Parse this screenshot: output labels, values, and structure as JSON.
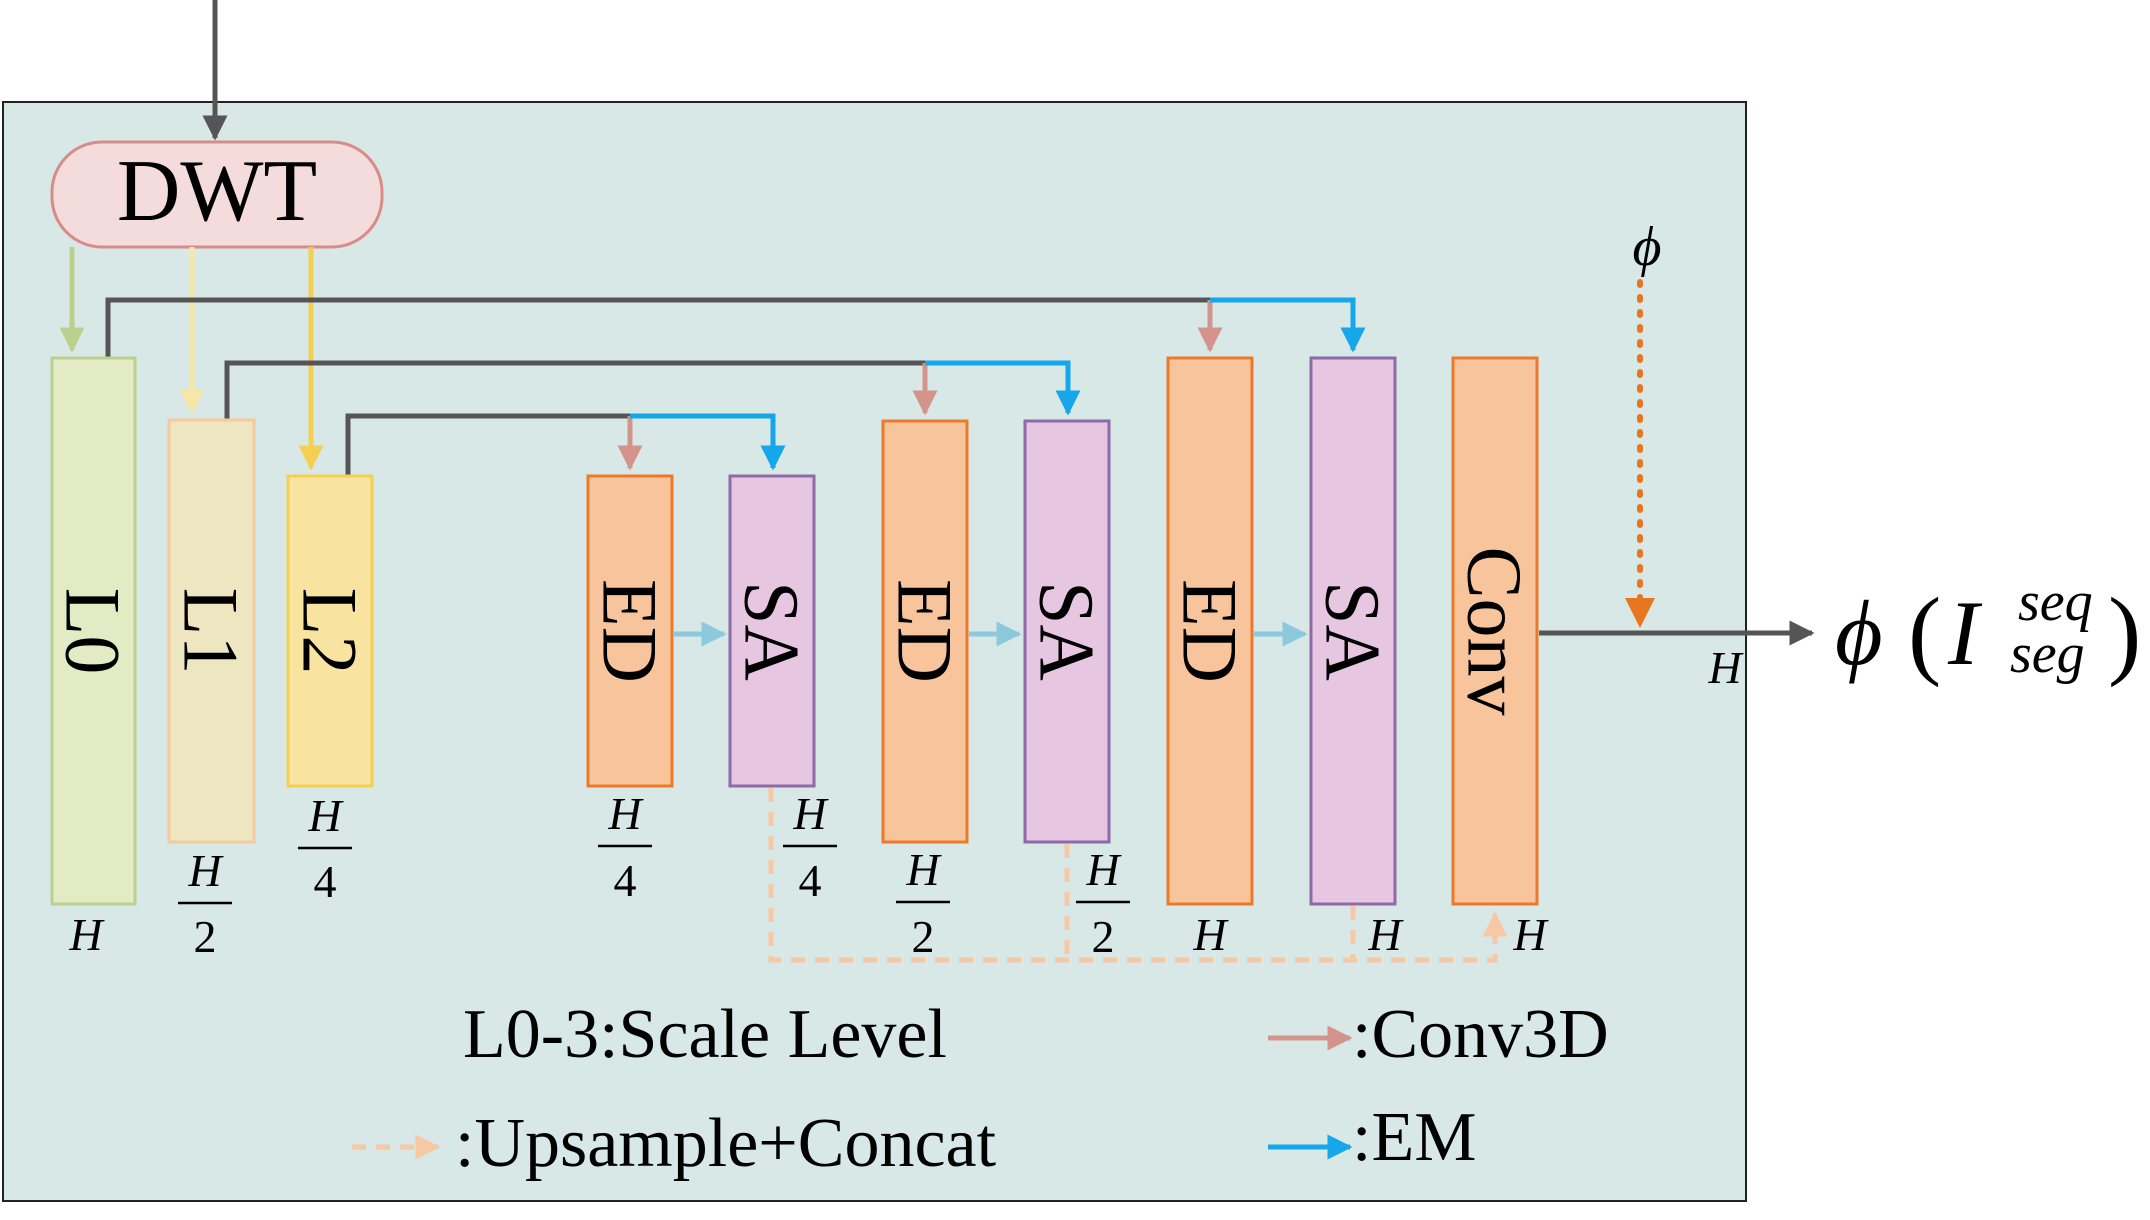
{
  "colors": {
    "panel_fill": "#d7e8e6",
    "dwt_fill": "#f3dcdb",
    "dwt_stroke": "#d98b88",
    "l0_fill": "#e3ebc5",
    "l0_stroke": "#b8d28e",
    "l1_fill": "#eee6c1",
    "l1_stroke": "#f5c9a0",
    "l2_fill": "#f8e4a0",
    "l2_stroke": "#f5cf51",
    "ed_fill": "#f8c49b",
    "ed_stroke": "#ec7a2a",
    "sa_fill": "#e6c6e1",
    "sa_stroke": "#8e6aa6",
    "skip_line": "#555555",
    "conv3d_arrow": "#d4948c",
    "em_arrow": "#16a6ea",
    "ed_to_sa_arrow": "#8cc9dc",
    "upsample_dashed": "#f7c8a4",
    "phi_dotted": "#e8761e",
    "output_line": "#555555"
  },
  "blocks": {
    "dwt": "DWT",
    "l0": "L0",
    "l1": "L1",
    "l2": "L2",
    "ed": "ED",
    "sa": "SA",
    "conv": "Conv"
  },
  "scales": {
    "h_symbol": "H",
    "half_denominator": "2",
    "quarter_denominator": "4"
  },
  "phi_input": "ϕ",
  "output": {
    "phi": "ϕ",
    "open_paren": "(",
    "base": "I",
    "superscript": "seq",
    "subscript": "seg",
    "close_paren": ")",
    "scale": "H"
  },
  "legend": {
    "scale_level": "L0-3:Scale Level",
    "conv3d": ":Conv3D",
    "upsample": ":Upsample+Concat",
    "em": ":EM"
  }
}
